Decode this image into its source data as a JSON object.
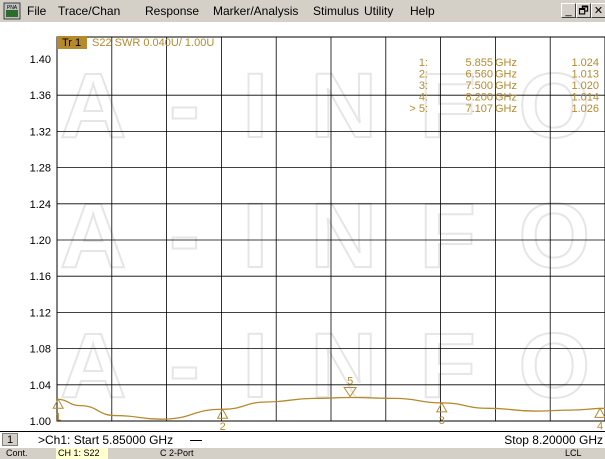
{
  "menu": {
    "app_icon_label": "PNA",
    "items": [
      "File",
      "Trace/Chan",
      "Response",
      "Marker/Analysis",
      "Stimulus",
      "Utility",
      "Help"
    ]
  },
  "window_controls": {
    "minimize": "_",
    "restore": "🗗",
    "close": "✕"
  },
  "trace": {
    "badge": "Tr 1",
    "label": "S22 SWR 0.040U/  1.00U",
    "color": "#b58a2e"
  },
  "markers": [
    {
      "id": "1:",
      "freq": "5.855",
      "unit": "GHz",
      "value": "1.024",
      "x": 5.855,
      "y": 1.024,
      "symbol_label": "1"
    },
    {
      "id": "2:",
      "freq": "6.560",
      "unit": "GHz",
      "value": "1.013",
      "x": 6.56,
      "y": 1.013,
      "symbol_label": "2"
    },
    {
      "id": "3:",
      "freq": "7.500",
      "unit": "GHz",
      "value": "1.020",
      "x": 7.5,
      "y": 1.02,
      "symbol_label": "3"
    },
    {
      "id": "4:",
      "freq": "8.200",
      "unit": "GHz",
      "value": "1.014",
      "x": 8.2,
      "y": 1.014,
      "symbol_label": "4"
    },
    {
      "id": "> 5:",
      "freq": "7.107",
      "unit": "GHz",
      "value": "1.026",
      "x": 7.107,
      "y": 1.026,
      "symbol_label": "5"
    }
  ],
  "chart_data": {
    "type": "line",
    "ylim": [
      1.0,
      1.4
    ],
    "xlim": [
      5.85,
      8.2
    ],
    "y_ticks": [
      "1.40",
      "1.36",
      "1.32",
      "1.28",
      "1.24",
      "1.20",
      "1.16",
      "1.12",
      "1.08",
      "1.04",
      "1.00"
    ],
    "grid": true,
    "series": [
      {
        "x": [
          5.85,
          5.95,
          6.1,
          6.3,
          6.56,
          6.75,
          6.95,
          7.107,
          7.3,
          7.5,
          7.7,
          7.9,
          8.05,
          8.2
        ],
        "y": [
          1.024,
          1.017,
          1.006,
          1.002,
          1.013,
          1.021,
          1.025,
          1.026,
          1.025,
          1.02,
          1.014,
          1.011,
          1.012,
          1.014
        ]
      }
    ]
  },
  "watermark": "A-INFO",
  "status": {
    "channel": "1",
    "start": ">Ch1: Start  5.85000 GHz",
    "stop": "Stop  8.20000 GHz"
  },
  "bottom": {
    "left": "Cont.",
    "trace": "CH 1:  S22",
    "port": "C  2-Port",
    "right": "LCL"
  }
}
